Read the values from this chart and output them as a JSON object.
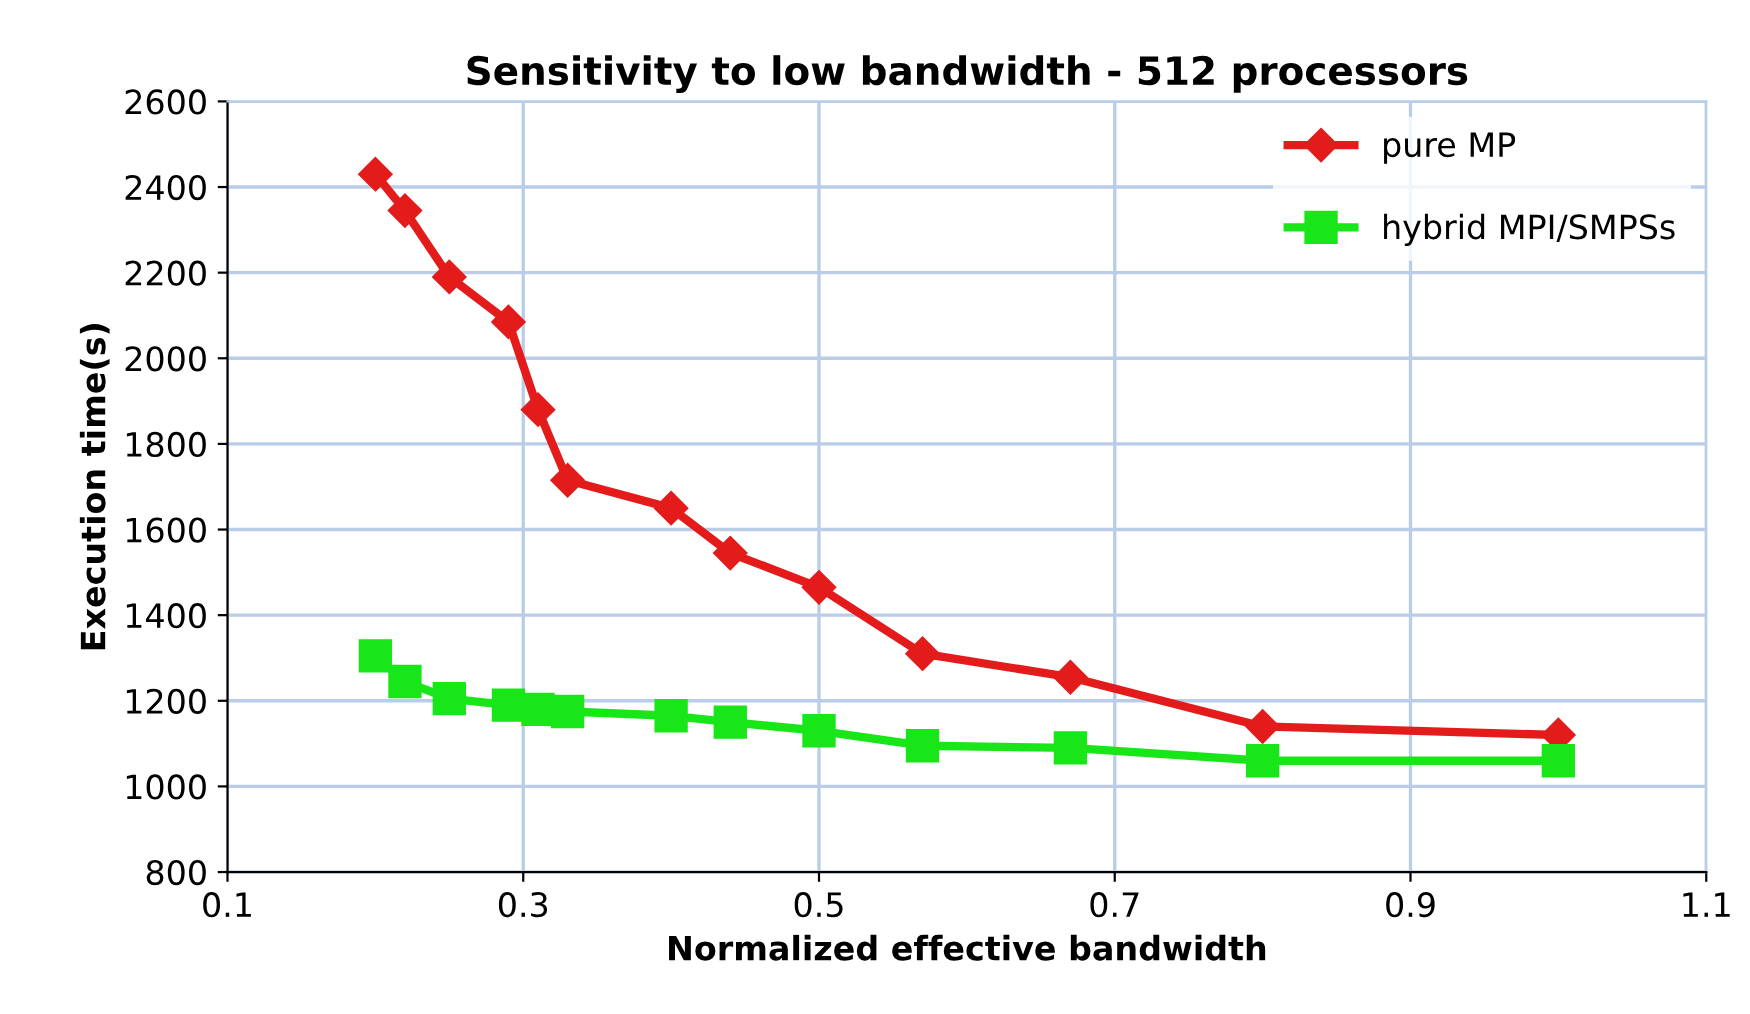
{
  "chart_data": {
    "type": "line",
    "title": "Sensitivity to low bandwidth - 512 processors",
    "xlabel": "Normalized effective bandwidth",
    "ylabel": "Execution time(s)",
    "x": [
      0.2,
      0.22,
      0.25,
      0.29,
      0.31,
      0.33,
      0.4,
      0.44,
      0.5,
      0.57,
      0.67,
      0.8,
      1.0
    ],
    "series": [
      {
        "name": "pure MP",
        "color": "#e31b1b",
        "marker": "diamond",
        "values": [
          2430,
          2345,
          2190,
          2085,
          1880,
          1715,
          1650,
          1545,
          1465,
          1310,
          1255,
          1140,
          1120
        ]
      },
      {
        "name": "hybrid MPI/SMPSs",
        "color": "#19e619",
        "marker": "square",
        "values": [
          1305,
          1245,
          1205,
          1190,
          1180,
          1175,
          1165,
          1150,
          1130,
          1095,
          1090,
          1060,
          1060
        ]
      }
    ],
    "xlim": [
      0.1,
      1.1
    ],
    "xticks": [
      0.1,
      0.3,
      0.5,
      0.7,
      0.9,
      1.1
    ],
    "ylim": [
      800,
      2600
    ],
    "yticks": [
      800,
      1000,
      1200,
      1400,
      1600,
      1800,
      2000,
      2200,
      2400,
      2600
    ],
    "grid": true,
    "legend": "top right",
    "line_style": "solid"
  }
}
